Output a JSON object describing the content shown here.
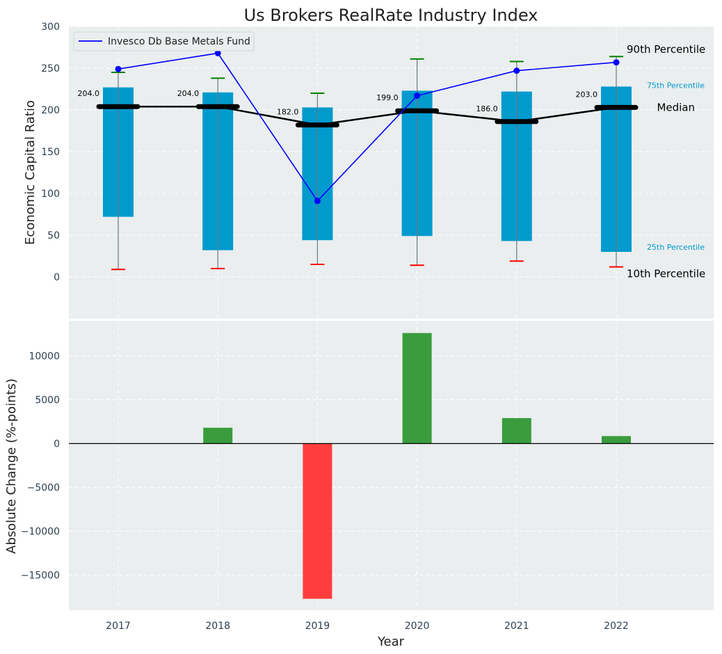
{
  "chart_data": [
    {
      "type": "box",
      "title": "Us Brokers RealRate Industry Index",
      "ylabel": "Economic Capital Ratio",
      "ylim": [
        -50,
        300
      ],
      "yticks": [
        0,
        50,
        100,
        150,
        200,
        250,
        300
      ],
      "grid": true,
      "legend_placement": "top-left",
      "categories": [
        "2017",
        "2018",
        "2019",
        "2020",
        "2021",
        "2022"
      ],
      "p10": [
        9,
        10,
        15,
        14,
        19,
        12
      ],
      "p25": [
        72,
        32,
        44,
        49,
        43,
        30
      ],
      "median": [
        204,
        204,
        182,
        199,
        186,
        203
      ],
      "p75": [
        227,
        221,
        203,
        223,
        222,
        228
      ],
      "p90": [
        245,
        238,
        220,
        261,
        258,
        264
      ],
      "median_labels": [
        "204.0",
        "204.0",
        "182.0",
        "199.0",
        "186.0",
        "203.0"
      ],
      "series": [
        {
          "name": "Invesco Db Base Metals Fund",
          "values": [
            249,
            268,
            91,
            217,
            247,
            257
          ],
          "color": "#0000ff"
        }
      ],
      "annotations": {
        "p90": "90th Percentile",
        "p75": "75th Percentile",
        "median": "Median",
        "p25": "25th Percentile",
        "p10": "10th Percentile"
      },
      "colors": {
        "box": "#009ACD",
        "median": "#000000",
        "p90_cap": "#008000",
        "p10_cap": "#ff0000",
        "background": "#EAEEEF"
      }
    },
    {
      "type": "bar",
      "xlabel": "Year",
      "ylabel": "Absolute Change (%-points)",
      "ylim": [
        -19000,
        14000
      ],
      "yticks": [
        -15000,
        -10000,
        -5000,
        0,
        5000,
        10000
      ],
      "ytick_labels": [
        "−15000",
        "−10000",
        "−5000",
        "0",
        "5000",
        "10000"
      ],
      "categories": [
        "2017",
        "2018",
        "2019",
        "2020",
        "2021",
        "2022"
      ],
      "values": [
        0,
        1800,
        -17700,
        12600,
        2900,
        850
      ],
      "colors": {
        "positive": "#3A9C3D",
        "negative": "#FF3D3D",
        "background": "#EAEEEF"
      }
    }
  ]
}
